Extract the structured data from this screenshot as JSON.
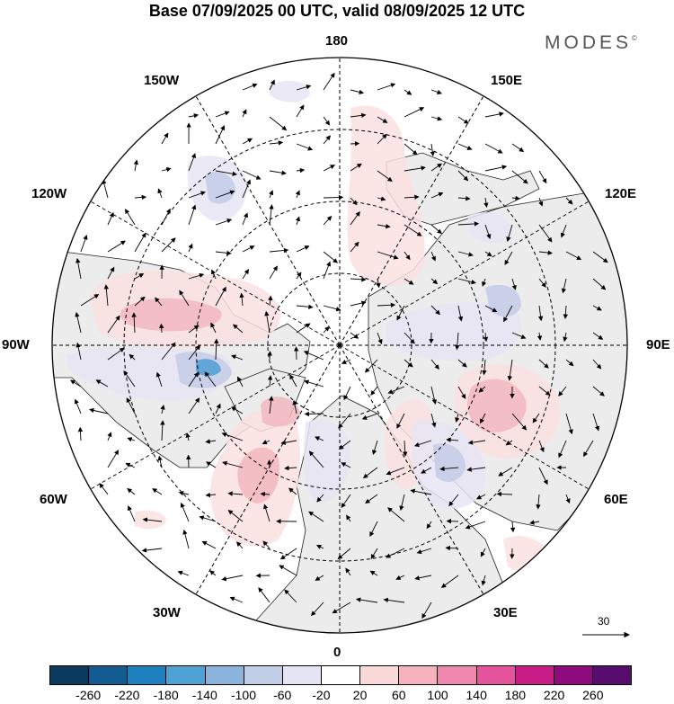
{
  "title": "Base 07/09/2025 00 UTC, valid 08/09/2025 12 UTC",
  "brand": "MODES",
  "brand_mark": "©",
  "longitude_labels": {
    "top": "180",
    "bottom": "0",
    "left": "90W",
    "right": "90E",
    "upper_left_1": "150W",
    "upper_left_2": "120W",
    "upper_right_1": "150E",
    "upper_right_2": "120E",
    "lower_left_1": "60W",
    "lower_left_2": "30W",
    "lower_right_1": "60E",
    "lower_right_2": "30E"
  },
  "reference_vector": "30",
  "colorbar": {
    "colors": [
      "#0b3a5e",
      "#135c92",
      "#1f80bf",
      "#4fa3d4",
      "#8bb4dc",
      "#c2cde6",
      "#e5e4f2",
      "#ffffff",
      "#f9d8d8",
      "#f5b2bd",
      "#ef86ad",
      "#e3549c",
      "#c81d86",
      "#8d0b7c",
      "#560d6e"
    ],
    "ticks": [
      "-260",
      "-220",
      "-180",
      "-140",
      "-100",
      "-60",
      "-20",
      "20",
      "60",
      "100",
      "140",
      "180",
      "220",
      "260"
    ]
  },
  "anomaly_colors": {
    "positive_light": "#fbe1e1",
    "positive_mid": "#f2b7bf",
    "positive_strong": "#e98aa8",
    "negative_light": "#e6e5f3",
    "negative_mid": "#c3cbe6",
    "negative_strong": "#8fb0db",
    "negative_peak": "#4f9fd2",
    "land": "#ececec"
  }
}
